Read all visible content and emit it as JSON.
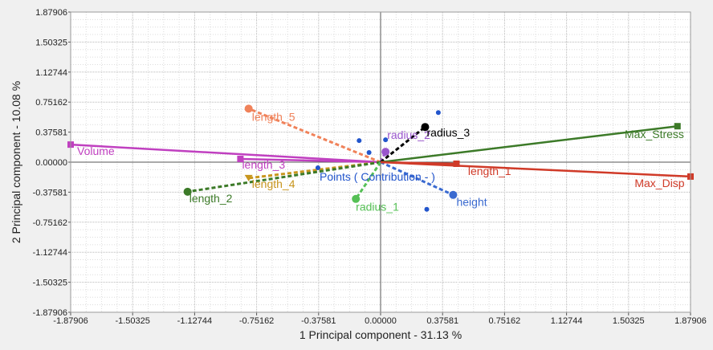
{
  "chart_data": {
    "type": "scatter",
    "xlabel": "1 Principal component - 31.13 %",
    "ylabel": "2 Principal component - 10.08 %",
    "xlim": [
      -1.87906,
      1.87906
    ],
    "ylim": [
      -1.87906,
      1.87906
    ],
    "xticks": [
      "-1.87906",
      "-1.50325",
      "-1.12744",
      "-0.75162",
      "-0.37581",
      "0.00000",
      "0.37581",
      "0.75162",
      "1.12744",
      "1.50325",
      "1.87906"
    ],
    "yticks": [
      "1.87906",
      "1.50325",
      "1.12744",
      "0.75162",
      "0.37581",
      "0.00000",
      "-0.37581",
      "-0.75162",
      "-1.12744",
      "-1.50325",
      "-1.87906"
    ],
    "grid": true,
    "center_label": "Points ( Contribution - )",
    "loadings": [
      {
        "name": "Volume",
        "x": -1.87906,
        "y": 0.22,
        "color": "#c040c0",
        "style": "solid",
        "marker": "square",
        "label_x": -1.84,
        "label_y": 0.09
      },
      {
        "name": "length_3",
        "x": -0.85,
        "y": 0.04,
        "color": "#c040c0",
        "style": "solid",
        "marker": "square",
        "label_x": -0.84,
        "label_y": -0.08
      },
      {
        "name": "length_5",
        "x": -0.8,
        "y": 0.67,
        "color": "#f0825a",
        "style": "dashed",
        "marker": "circle",
        "label_x": -0.78,
        "label_y": 0.52
      },
      {
        "name": "length_4",
        "x": -0.8,
        "y": -0.2,
        "color": "#c8961e",
        "style": "dashed",
        "marker": "triangle",
        "label_x": -0.78,
        "label_y": -0.32
      },
      {
        "name": "length_2",
        "x": -1.17,
        "y": -0.37,
        "color": "#3c7a28",
        "style": "dashed",
        "marker": "circle",
        "label_x": -1.16,
        "label_y": -0.5
      },
      {
        "name": "radius_1",
        "x": -0.15,
        "y": -0.46,
        "color": "#55c055",
        "style": "dashed",
        "marker": "circle",
        "label_x": -0.15,
        "label_y": -0.61
      },
      {
        "name": "radius_2",
        "x": 0.03,
        "y": 0.13,
        "color": "#9955cc",
        "style": "dashed",
        "marker": "circle",
        "label_x": 0.04,
        "label_y": 0.29
      },
      {
        "name": "radius_3",
        "x": 0.27,
        "y": 0.44,
        "color": "#000000",
        "style": "dashed",
        "marker": "circle",
        "label_x": 0.28,
        "label_y": 0.32
      },
      {
        "name": "height",
        "x": 0.44,
        "y": -0.41,
        "color": "#3a6ad0",
        "style": "dashed",
        "marker": "circle",
        "label_x": 0.46,
        "label_y": -0.55
      },
      {
        "name": "length_1",
        "x": 0.46,
        "y": -0.02,
        "color": "#d03a28",
        "style": "solid",
        "marker": "square",
        "label_x": 0.53,
        "label_y": -0.16
      },
      {
        "name": "Max_Stress",
        "x": 1.8,
        "y": 0.45,
        "color": "#3c7a28",
        "style": "solid",
        "marker": "square",
        "label_x": 1.48,
        "label_y": 0.3
      },
      {
        "name": "Max_Disp",
        "x": 1.87906,
        "y": -0.18,
        "color": "#d03a28",
        "style": "solid",
        "marker": "square",
        "label_x": 1.54,
        "label_y": -0.31
      }
    ],
    "points": [
      {
        "x": -0.13,
        "y": 0.27,
        "color": "#2255cc"
      },
      {
        "x": -0.07,
        "y": 0.12,
        "color": "#2255cc"
      },
      {
        "x": 0.03,
        "y": 0.28,
        "color": "#2255cc"
      },
      {
        "x": -0.38,
        "y": -0.07,
        "color": "#2255cc"
      },
      {
        "x": 0.35,
        "y": 0.62,
        "color": "#2255cc"
      },
      {
        "x": 0.28,
        "y": -0.59,
        "color": "#2255cc"
      }
    ]
  }
}
